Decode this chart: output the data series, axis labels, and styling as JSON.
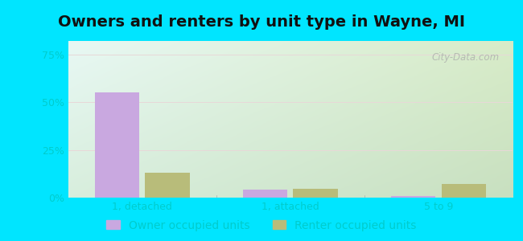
{
  "title": "Owners and renters by unit type in Wayne, MI",
  "categories": [
    "1, detached",
    "1, attached",
    "5 to 9"
  ],
  "owner_values": [
    55.0,
    4.0,
    1.0
  ],
  "renter_values": [
    13.0,
    4.5,
    7.0
  ],
  "owner_color": "#c9a8e0",
  "renter_color": "#b8bc7a",
  "yticks": [
    0,
    25,
    50,
    75
  ],
  "yticklabels": [
    "0%",
    "25%",
    "50%",
    "75%"
  ],
  "ylim": [
    0,
    82
  ],
  "bar_width": 0.3,
  "outer_background": "#00e5ff",
  "watermark": "City-Data.com",
  "legend_owner": "Owner occupied units",
  "legend_renter": "Renter occupied units",
  "title_fontsize": 14,
  "tick_fontsize": 9,
  "legend_fontsize": 10,
  "tick_color": "#00cccc",
  "label_color": "#00cccc",
  "grid_color": "#e0e8e0",
  "bg_color_top_left": "#e8f8f0",
  "bg_color_top_right": "#d0e8c8",
  "bg_color_bottom": "#c8e8d0"
}
